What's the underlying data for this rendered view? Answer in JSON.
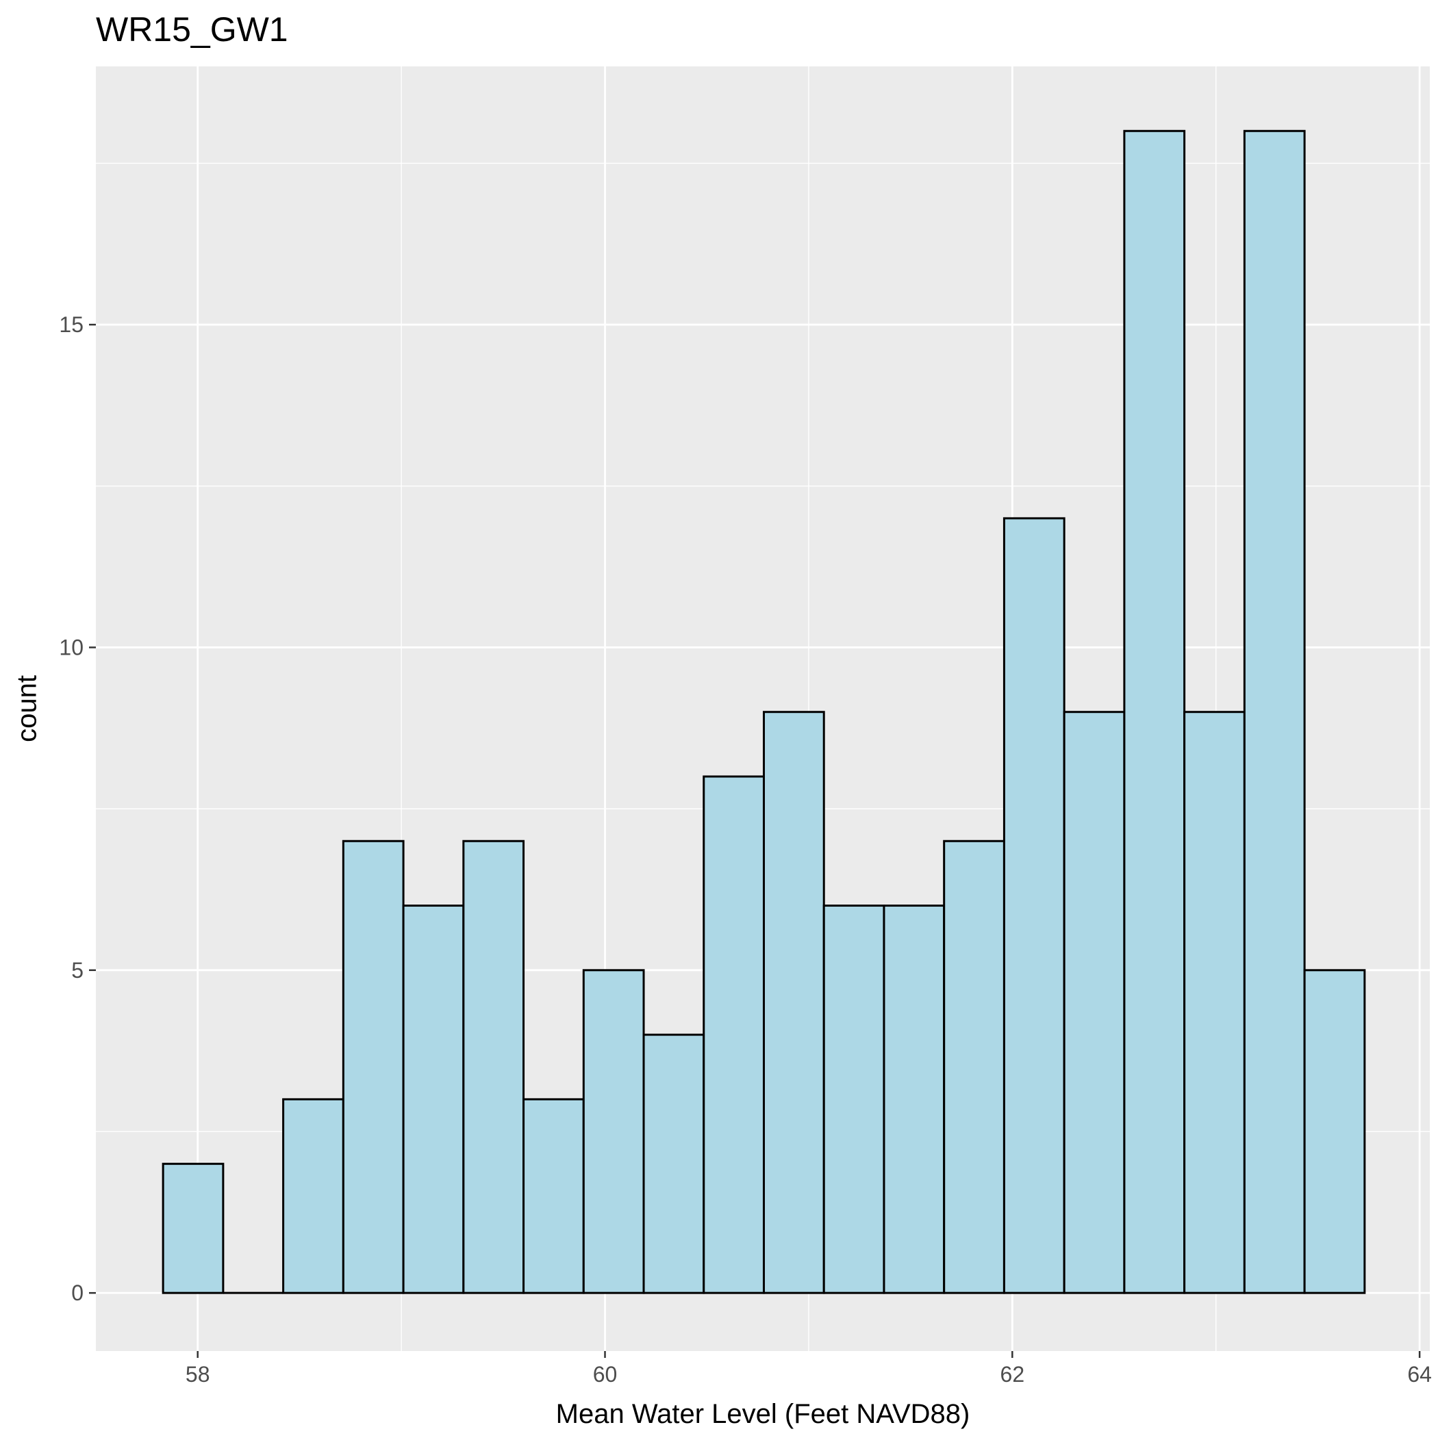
{
  "chart_data": {
    "type": "bar",
    "subtype": "histogram",
    "title": "WR15_GW1",
    "xlabel": "Mean Water Level (Feet NAVD88)",
    "ylabel": "count",
    "x_ticks": [
      "58",
      "60",
      "62",
      "64"
    ],
    "y_ticks": [
      "0",
      "5",
      "10",
      "15"
    ],
    "xlim": [
      57.5,
      64.05
    ],
    "ylim": [
      -0.9,
      19.0
    ],
    "bin_width": 0.295,
    "bins": [
      {
        "x0": 57.83,
        "x1": 58.125,
        "count": 2
      },
      {
        "x0": 58.125,
        "x1": 58.42,
        "count": 0
      },
      {
        "x0": 58.42,
        "x1": 58.715,
        "count": 3
      },
      {
        "x0": 58.715,
        "x1": 59.01,
        "count": 7
      },
      {
        "x0": 59.01,
        "x1": 59.305,
        "count": 6
      },
      {
        "x0": 59.305,
        "x1": 59.6,
        "count": 7
      },
      {
        "x0": 59.6,
        "x1": 59.895,
        "count": 3
      },
      {
        "x0": 59.895,
        "x1": 60.19,
        "count": 5
      },
      {
        "x0": 60.19,
        "x1": 60.485,
        "count": 4
      },
      {
        "x0": 60.485,
        "x1": 60.78,
        "count": 8
      },
      {
        "x0": 60.78,
        "x1": 61.075,
        "count": 9
      },
      {
        "x0": 61.075,
        "x1": 61.37,
        "count": 6
      },
      {
        "x0": 61.37,
        "x1": 61.665,
        "count": 6
      },
      {
        "x0": 61.665,
        "x1": 61.96,
        "count": 7
      },
      {
        "x0": 61.96,
        "x1": 62.255,
        "count": 12
      },
      {
        "x0": 62.255,
        "x1": 62.55,
        "count": 9
      },
      {
        "x0": 62.55,
        "x1": 62.845,
        "count": 18
      },
      {
        "x0": 62.845,
        "x1": 63.14,
        "count": 9
      },
      {
        "x0": 63.14,
        "x1": 63.435,
        "count": 18
      },
      {
        "x0": 63.435,
        "x1": 63.73,
        "count": 5
      }
    ],
    "grid": true,
    "legend": "none",
    "colors": {
      "bar_fill": "#add8e6",
      "bar_outline": "#000000",
      "panel_background": "#ebebeb",
      "grid": "#ffffff"
    }
  }
}
